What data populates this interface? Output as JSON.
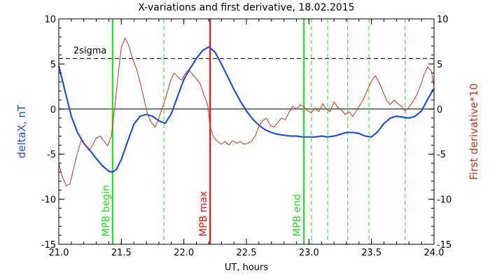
{
  "chart_data": {
    "type": "line",
    "title": "X-variations and first derivative, 18.02.2015",
    "xlabel": "UT, hours",
    "ylabel_left": "deltaX, nT",
    "ylabel_right": "First derivative*10",
    "xlim": [
      21.0,
      24.0
    ],
    "ylim_left": [
      -15,
      10
    ],
    "ylim_right": [
      -15,
      10
    ],
    "x_ticks": [
      21.0,
      21.5,
      22.0,
      22.5,
      23.0,
      23.5,
      24.0
    ],
    "x_tick_labels": [
      "21.0",
      "21.5",
      "22.0",
      "22.5",
      "23.0",
      "23.5",
      "24.0"
    ],
    "y_ticks": [
      -15,
      -10,
      -5,
      0,
      5,
      10
    ],
    "y_tick_labels": [
      "-15",
      "-10",
      "-5",
      "0",
      "5",
      "10"
    ],
    "colors": {
      "deltaX": "#1f50d8",
      "derivative": "#c8321e",
      "green": "#22dd22",
      "red": "#ee1111",
      "axis": "#000000"
    },
    "series": [
      {
        "key": "deltaX",
        "x": [
          21.0,
          21.05,
          21.1,
          21.15,
          21.2,
          21.25,
          21.3,
          21.35,
          21.4,
          21.43,
          21.46,
          21.5,
          21.55,
          21.6,
          21.65,
          21.7,
          21.75,
          21.8,
          21.85,
          21.9,
          21.95,
          22.0,
          22.05,
          22.1,
          22.15,
          22.2,
          22.25,
          22.3,
          22.35,
          22.4,
          22.45,
          22.5,
          22.55,
          22.6,
          22.65,
          22.7,
          22.75,
          22.8,
          22.85,
          22.9,
          22.95,
          23.0,
          23.05,
          23.1,
          23.15,
          23.2,
          23.25,
          23.3,
          23.35,
          23.4,
          23.45,
          23.5,
          23.55,
          23.6,
          23.65,
          23.7,
          23.75,
          23.8,
          23.85,
          23.9,
          23.95,
          24.0
        ],
        "values": [
          4.8,
          2.0,
          -0.8,
          -2.6,
          -3.8,
          -4.6,
          -5.5,
          -6.3,
          -6.9,
          -7.0,
          -6.7,
          -5.6,
          -3.6,
          -1.7,
          -0.8,
          -0.6,
          -0.8,
          -1.3,
          -1.6,
          -0.5,
          1.4,
          3.3,
          4.5,
          5.6,
          6.5,
          6.9,
          6.3,
          5.0,
          3.6,
          2.2,
          0.9,
          -0.2,
          -1.1,
          -1.8,
          -2.3,
          -2.6,
          -2.8,
          -2.9,
          -3.0,
          -3.0,
          -3.1,
          -3.1,
          -3.1,
          -3.0,
          -3.1,
          -3.0,
          -2.8,
          -2.6,
          -2.6,
          -2.7,
          -3.0,
          -3.1,
          -2.5,
          -1.6,
          -1.0,
          -0.8,
          -0.9,
          -1.0,
          -0.8,
          -0.2,
          1.1,
          2.3
        ]
      },
      {
        "key": "derivative",
        "x": [
          21.0,
          21.03,
          21.06,
          21.09,
          21.12,
          21.15,
          21.18,
          21.21,
          21.24,
          21.27,
          21.3,
          21.33,
          21.36,
          21.39,
          21.42,
          21.45,
          21.48,
          21.5,
          21.53,
          21.56,
          21.59,
          21.62,
          21.65,
          21.68,
          21.71,
          21.74,
          21.77,
          21.8,
          21.83,
          21.86,
          21.89,
          21.92,
          21.95,
          21.98,
          22.01,
          22.04,
          22.07,
          22.1,
          22.13,
          22.16,
          22.19,
          22.21,
          22.24,
          22.27,
          22.3,
          22.33,
          22.36,
          22.39,
          22.42,
          22.45,
          22.48,
          22.51,
          22.54,
          22.57,
          22.6,
          22.63,
          22.66,
          22.69,
          22.72,
          22.75,
          22.78,
          22.81,
          22.84,
          22.87,
          22.9,
          22.93,
          22.96,
          22.99,
          23.02,
          23.05,
          23.08,
          23.11,
          23.14,
          23.17,
          23.2,
          23.23,
          23.26,
          23.29,
          23.32,
          23.35,
          23.38,
          23.41,
          23.44,
          23.47,
          23.5,
          23.53,
          23.56,
          23.59,
          23.62,
          23.65,
          23.68,
          23.71,
          23.74,
          23.77,
          23.8,
          23.83,
          23.86,
          23.89,
          23.92,
          23.95,
          23.98,
          24.0
        ],
        "values": [
          -6.0,
          -7.6,
          -8.5,
          -8.3,
          -6.5,
          -4.8,
          -3.5,
          -3.9,
          -4.6,
          -4.0,
          -3.2,
          -3.0,
          -3.5,
          -4.1,
          -3.0,
          0.5,
          4.5,
          6.8,
          7.9,
          7.0,
          5.6,
          4.5,
          3.0,
          1.2,
          -0.6,
          -1.5,
          -2.0,
          -1.0,
          0.2,
          1.5,
          3.0,
          4.0,
          3.6,
          3.2,
          3.9,
          4.4,
          3.8,
          3.4,
          2.8,
          1.6,
          0.5,
          -2.0,
          -3.2,
          -3.6,
          -3.9,
          -3.6,
          -4.0,
          -3.5,
          -3.8,
          -3.6,
          -3.9,
          -3.8,
          -3.6,
          -3.0,
          -1.9,
          -1.3,
          -1.0,
          -1.8,
          -2.0,
          -1.5,
          -1.0,
          -1.2,
          -0.4,
          0.3,
          0.0,
          0.5,
          0.3,
          -0.2,
          -0.4,
          0.1,
          -0.3,
          0.6,
          0.0,
          -0.3,
          0.8,
          0.2,
          -0.1,
          -0.6,
          -0.3,
          -0.8,
          -0.2,
          0.5,
          1.2,
          2.2,
          3.1,
          3.7,
          3.0,
          2.0,
          1.0,
          0.5,
          1.0,
          0.6,
          0.3,
          -0.2,
          0.2,
          0.8,
          1.5,
          2.5,
          3.8,
          4.7,
          4.2,
          2.5
        ]
      }
    ],
    "hlines": [
      {
        "y": 5.6,
        "style": "dashed",
        "color": "#000000",
        "label": "2sigma",
        "label_x": 21.15
      },
      {
        "y": 0,
        "style": "solid",
        "color": "#000000"
      }
    ],
    "vlines": [
      {
        "x": 21.43,
        "color": "#22dd22",
        "style": "solid",
        "label": "MPB begin"
      },
      {
        "x": 21.84,
        "color": "#22dd22",
        "style": "dashed"
      },
      {
        "x": 22.21,
        "color": "#ee1111",
        "style": "solid",
        "label": "MPB max"
      },
      {
        "x": 22.96,
        "color": "#22dd22",
        "style": "solid",
        "label": "MPB end"
      },
      {
        "x": 23.02,
        "color": "#22dd22",
        "style": "dashed"
      },
      {
        "x": 23.15,
        "color": "#22dd22",
        "style": "dashed"
      },
      {
        "x": 23.31,
        "color": "#22dd22",
        "style": "dashed"
      },
      {
        "x": 23.48,
        "color": "#22dd22",
        "style": "dashed"
      },
      {
        "x": 23.77,
        "color": "#22dd22",
        "style": "dashed"
      }
    ]
  }
}
